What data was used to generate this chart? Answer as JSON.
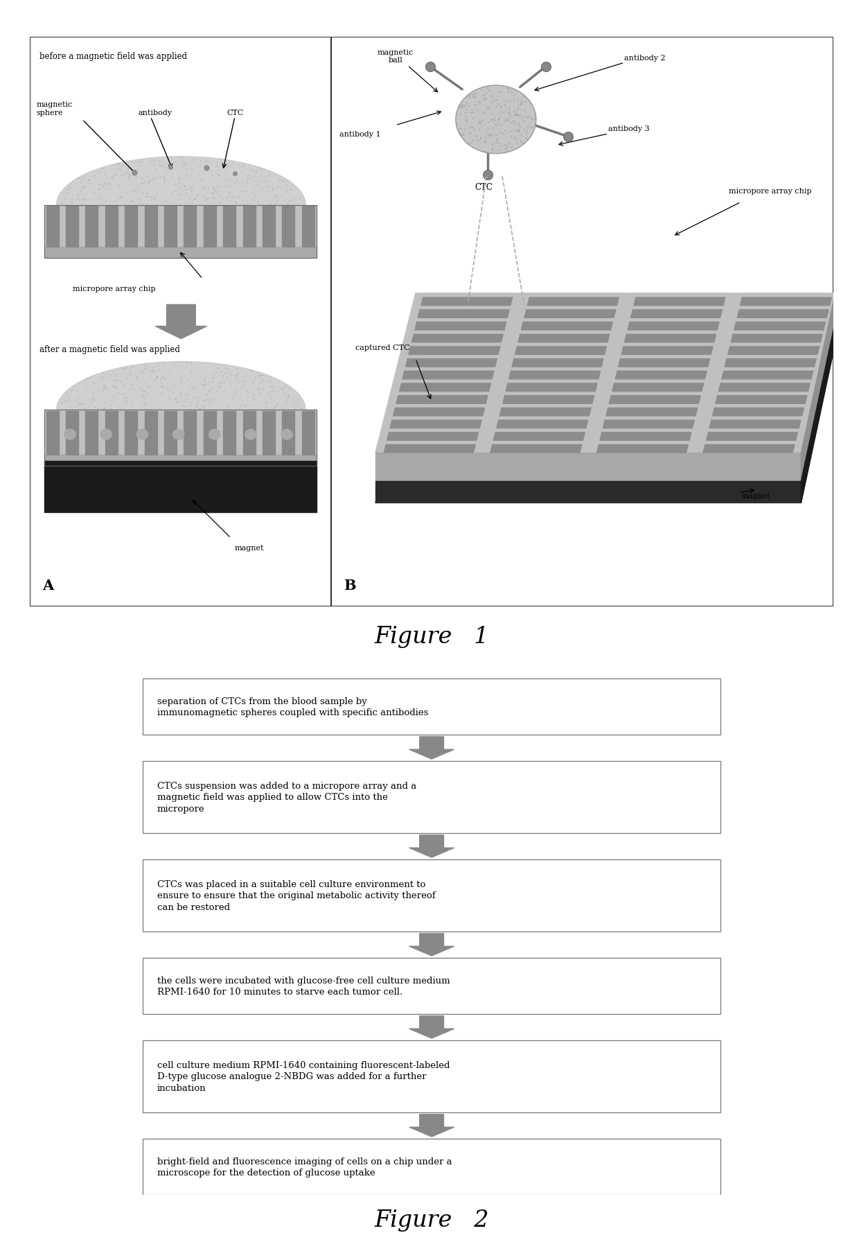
{
  "figure1_title": "Figure   1",
  "figure2_title": "Figure   2",
  "background_color": "#ffffff",
  "box_edge_color": "#777777",
  "box_fill_color": "#ffffff",
  "arrow_color": "#888888",
  "text_color": "#000000",
  "flow_steps": [
    "separation of CTCs from the blood sample by\nimmunomagnetic spheres coupled with specific antibodies",
    "CTCs suspension was added to a micropore array and a\nmagnetic field was applied to allow CTCs into the\nmicropore",
    "CTCs was placed in a suitable cell culture environment to\nensure to ensure that the original metabolic activity thereof\ncan be restored",
    "the cells were incubated with glucose-free cell culture medium\nRPMI-1640 for 10 minutes to starve each tumor cell.",
    "cell culture medium RPMI-1640 containing fluorescent-labeled\nD-type glucose analogue 2-NBDG was added for a further\nincubation",
    "bright-field and fluorescence imaging of cells on a chip under a\nmicroscope for the detection of glucose uptake"
  ],
  "fig1_border_color": "#444444",
  "panelA_title": "before a magnetic field was applied",
  "panelA_after": "after a magnetic field was applied",
  "panelA_mag_sphere": "magnetic\nsphere",
  "panelA_antibody": "antibody",
  "panelA_CTC": "CTC",
  "panelA_chip": "micropore array chip",
  "panelA_magnet": "magnet",
  "panelA_label": "A",
  "panelB_mag_ball": "magnetic\nball",
  "panelB_ab1": "antibody 1",
  "panelB_ab2": "antibody 2",
  "panelB_ab3": "antibody 3",
  "panelB_CTC": "CTC",
  "panelB_chip": "micropore array chip",
  "panelB_captured": "captured CTC",
  "panelB_magnet": "magnet",
  "panelB_label": "B"
}
